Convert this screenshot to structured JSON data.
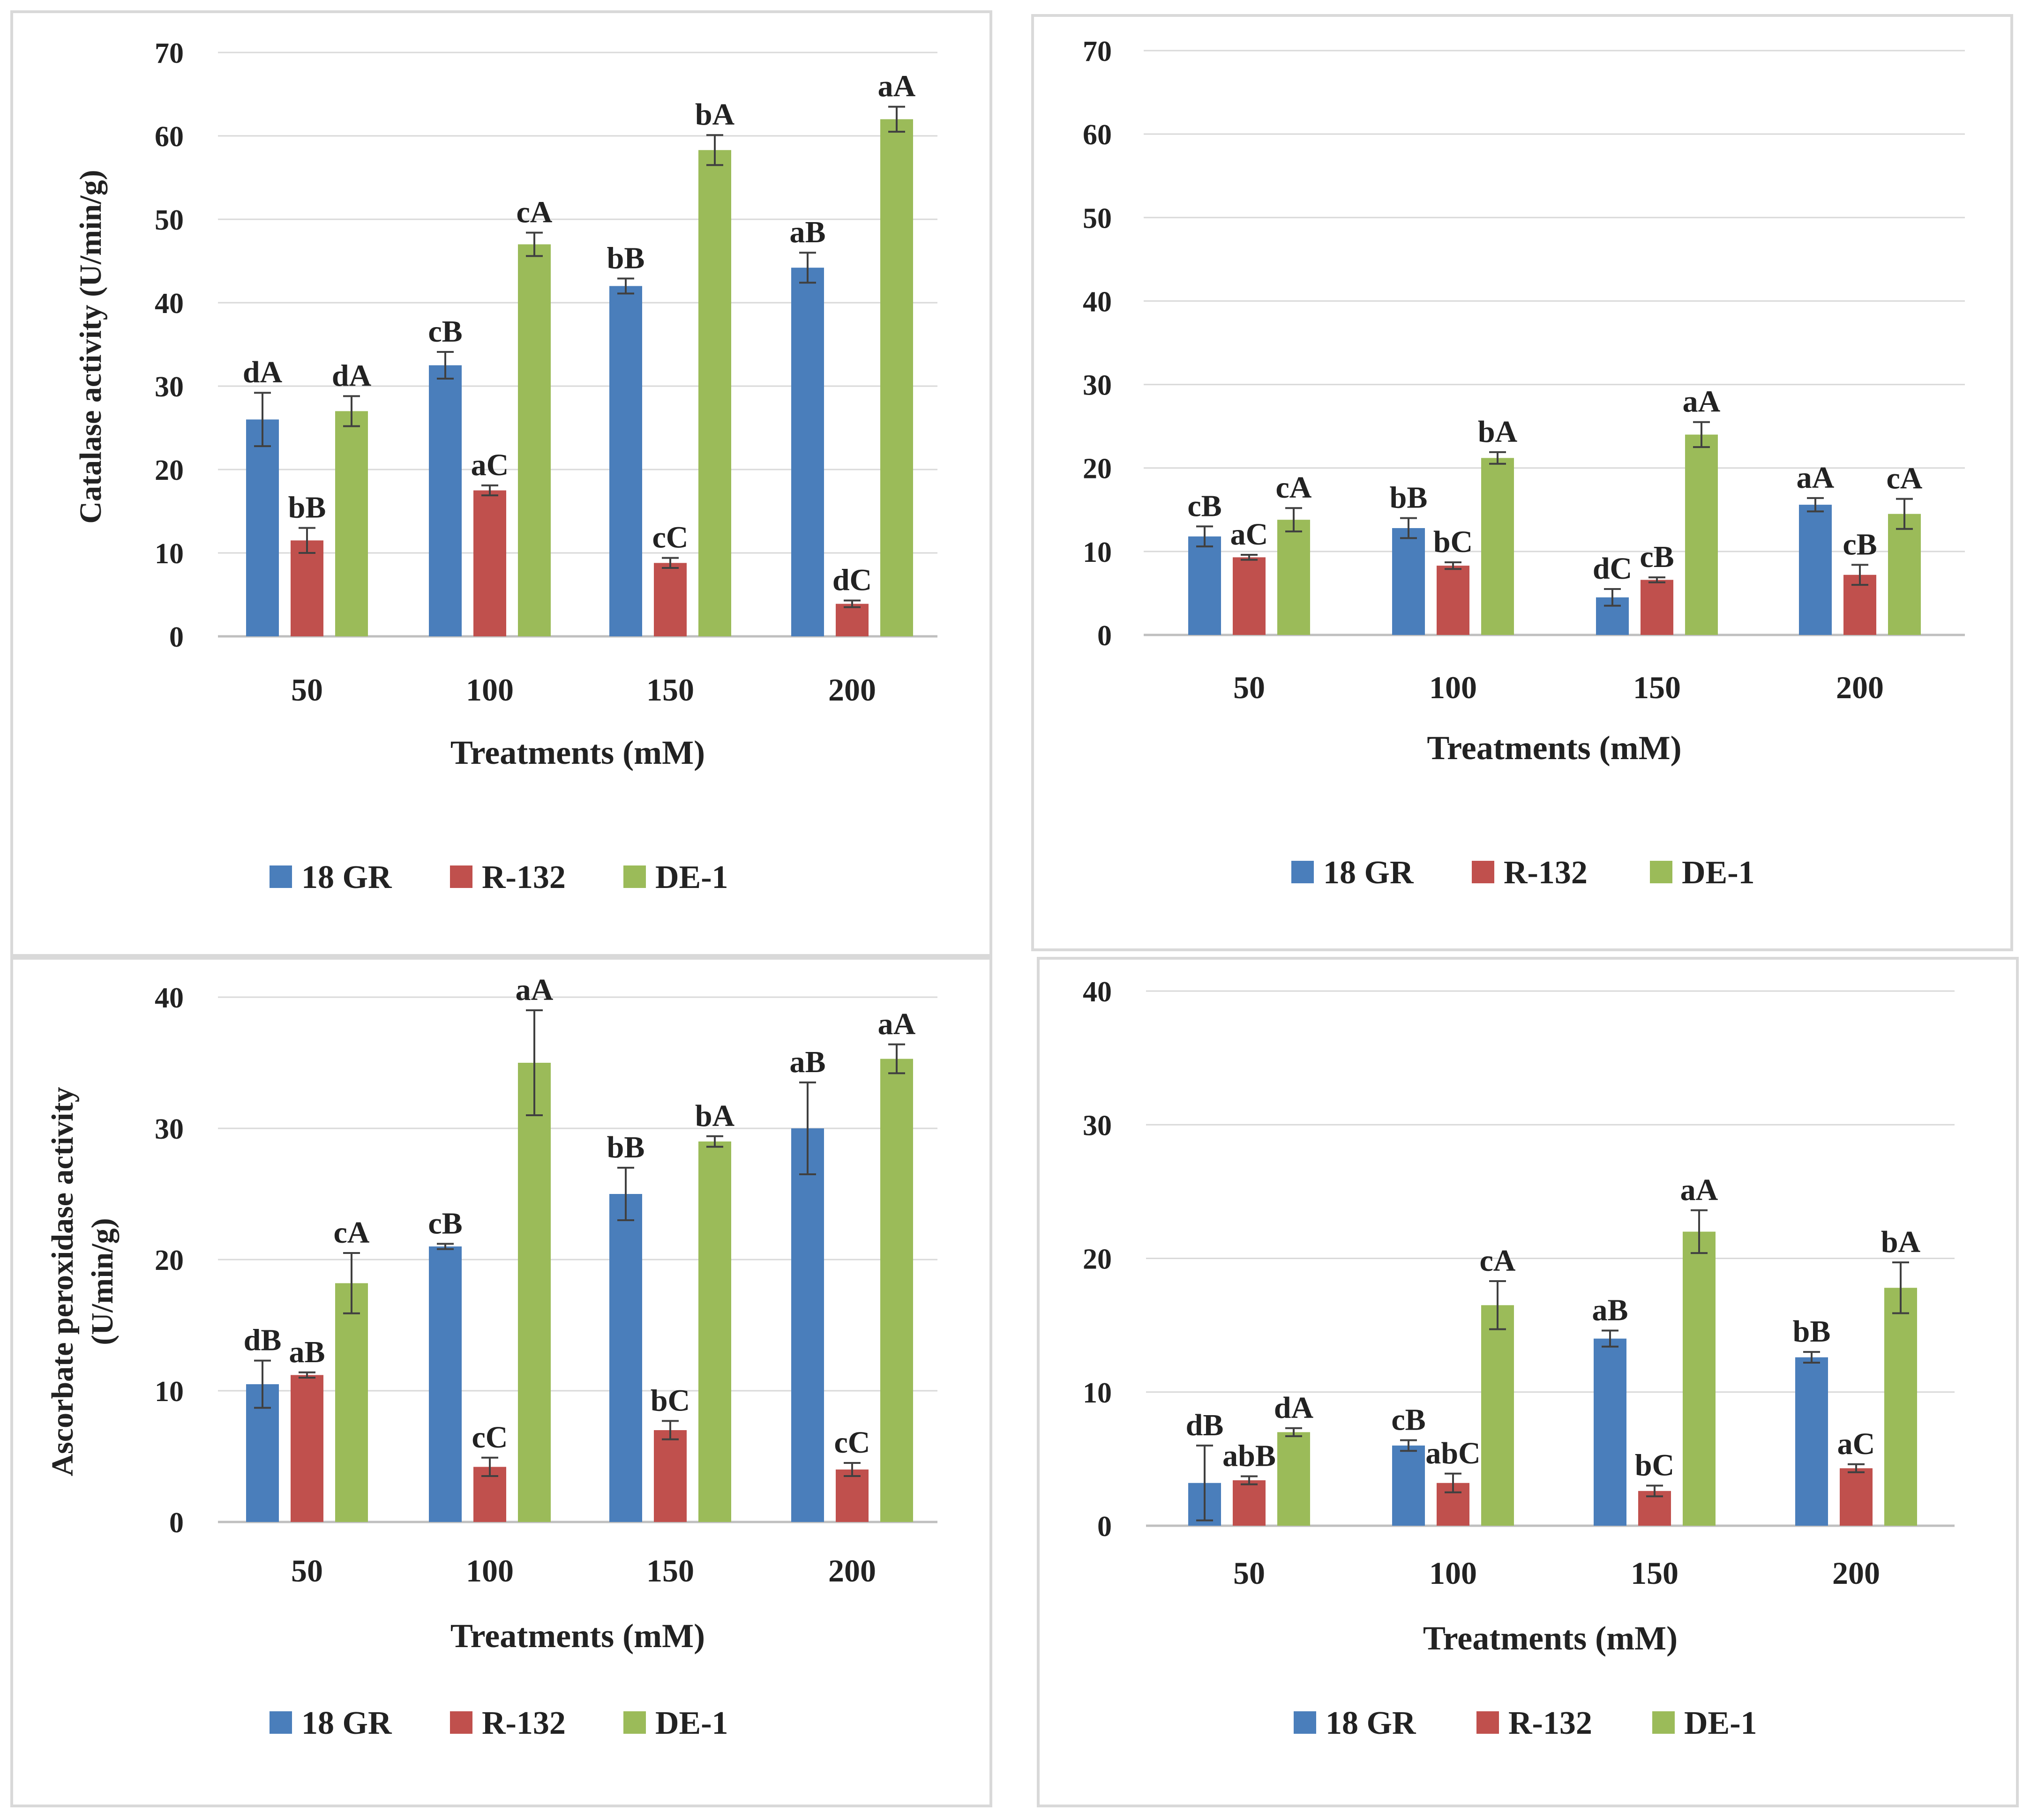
{
  "colors": {
    "18 GR": "#4a7ebb",
    "R-132": "#c0504d",
    "DE-1": "#9bbb59",
    "grid": "#d9d9d9",
    "error": "#404040"
  },
  "chart_data": [
    {
      "type": "bar",
      "title": "",
      "xlabel": "Treatments (mM)",
      "ylabel": "Catalase activity (U/min/g)",
      "ylim": [
        0,
        70
      ],
      "yticks": [
        "0",
        "10",
        "20",
        "30",
        "40",
        "50",
        "60",
        "70"
      ],
      "categories": [
        "50",
        "100",
        "150",
        "200"
      ],
      "legend_position": "bottom",
      "series": [
        {
          "name": "18 GR",
          "values": [
            26,
            32.5,
            42,
            44.2
          ],
          "errors": [
            3.2,
            1.6,
            0.9,
            1.8
          ],
          "letters": [
            "dA",
            "cB",
            "bB",
            "aB"
          ]
        },
        {
          "name": "R-132",
          "values": [
            11.5,
            17.5,
            8.8,
            3.9
          ],
          "errors": [
            1.5,
            0.6,
            0.6,
            0.4
          ],
          "letters": [
            "bB",
            "aC",
            "cC",
            "dC"
          ]
        },
        {
          "name": "DE-1",
          "values": [
            27,
            47,
            58.3,
            62
          ],
          "errors": [
            1.8,
            1.4,
            1.8,
            1.5
          ],
          "letters": [
            "dA",
            "cA",
            "bA",
            "aA"
          ]
        }
      ]
    },
    {
      "type": "bar",
      "title": "",
      "xlabel": "Treatments (mM)",
      "ylabel": "",
      "ylim": [
        0,
        70
      ],
      "yticks": [
        "0",
        "10",
        "20",
        "30",
        "40",
        "50",
        "60",
        "70"
      ],
      "categories": [
        "50",
        "100",
        "150",
        "200"
      ],
      "legend_position": "bottom",
      "series": [
        {
          "name": "18 GR",
          "values": [
            11.8,
            12.8,
            4.5,
            15.6
          ],
          "errors": [
            1.2,
            1.2,
            1,
            0.8
          ],
          "letters": [
            "cB",
            "bB",
            "dC",
            "aA"
          ]
        },
        {
          "name": "R-132",
          "values": [
            9.3,
            8.3,
            6.6,
            7.2
          ],
          "errors": [
            0.3,
            0.4,
            0.3,
            1.2
          ],
          "letters": [
            "aC",
            "bC",
            "cB",
            "cB"
          ]
        },
        {
          "name": "DE-1",
          "values": [
            13.8,
            21.2,
            24,
            14.5
          ],
          "errors": [
            1.4,
            0.7,
            1.5,
            1.8
          ],
          "letters": [
            "cA",
            "bA",
            "aA",
            "cA"
          ]
        }
      ]
    },
    {
      "type": "bar",
      "title": "",
      "xlabel": "Treatments (mM)",
      "ylabel": [
        "Ascorbate peroxidase  activity",
        "(U/min/g)"
      ],
      "ylim": [
        0,
        40
      ],
      "yticks": [
        "0",
        "10",
        "20",
        "30",
        "40"
      ],
      "categories": [
        "50",
        "100",
        "150",
        "200"
      ],
      "legend_position": "bottom",
      "series": [
        {
          "name": "18 GR",
          "values": [
            10.5,
            21,
            25,
            30
          ],
          "errors": [
            1.8,
            0.2,
            2,
            3.5
          ],
          "letters": [
            "dB",
            "cB",
            "bB",
            "aB"
          ]
        },
        {
          "name": "R-132",
          "values": [
            11.2,
            4.2,
            7,
            4
          ],
          "errors": [
            0.2,
            0.7,
            0.7,
            0.5
          ],
          "letters": [
            "aB",
            "cC",
            "bC",
            "cC"
          ]
        },
        {
          "name": "DE-1",
          "values": [
            18.2,
            35,
            29,
            35.3
          ],
          "errors": [
            2.3,
            4,
            0.4,
            1.1
          ],
          "letters": [
            "cA",
            "aA",
            "bA",
            "aA"
          ]
        }
      ]
    },
    {
      "type": "bar",
      "title": "",
      "xlabel": "Treatments (mM)",
      "ylabel": "",
      "ylim": [
        0,
        40
      ],
      "yticks": [
        "0",
        "10",
        "20",
        "30",
        "40"
      ],
      "categories": [
        "50",
        "100",
        "150",
        "200"
      ],
      "legend_position": "bottom",
      "series": [
        {
          "name": "18 GR",
          "values": [
            3.2,
            6,
            14,
            12.6
          ],
          "errors": [
            2.8,
            0.4,
            0.6,
            0.4
          ],
          "letters": [
            "dB",
            "cB",
            "aB",
            "bB"
          ]
        },
        {
          "name": "R-132",
          "values": [
            3.4,
            3.2,
            2.6,
            4.3
          ],
          "errors": [
            0.3,
            0.7,
            0.4,
            0.3
          ],
          "letters": [
            "abB",
            "abC",
            "bC",
            "aC"
          ]
        },
        {
          "name": "DE-1",
          "values": [
            7,
            16.5,
            22,
            17.8
          ],
          "errors": [
            0.3,
            1.8,
            1.6,
            1.9
          ],
          "letters": [
            "dA",
            "cA",
            "aA",
            "bA"
          ]
        }
      ]
    }
  ]
}
